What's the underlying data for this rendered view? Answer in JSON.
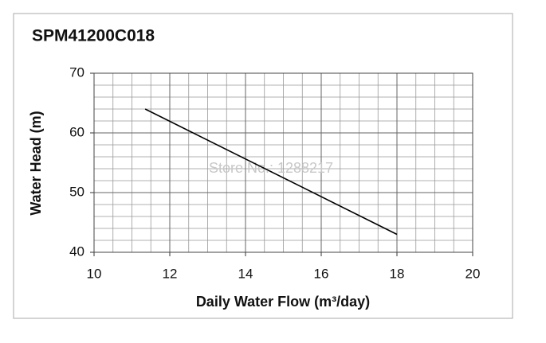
{
  "chart_data": {
    "type": "line",
    "title": "SPM41200C018",
    "x_label": "Daily Water Flow (m³/day)",
    "y_label": "Water Head (m)",
    "watermark": "Store No.: 1288217",
    "x": [
      11.35,
      18
    ],
    "values": [
      64,
      43
    ],
    "color": "#000000",
    "xlim": [
      10,
      20
    ],
    "xticks": [
      10,
      12,
      14,
      16,
      18,
      20
    ],
    "ylim": [
      40,
      70
    ],
    "yticks": [
      40,
      50,
      60,
      70
    ],
    "grid": true,
    "minor_grid": {
      "x": 0.5,
      "y": 2
    }
  }
}
